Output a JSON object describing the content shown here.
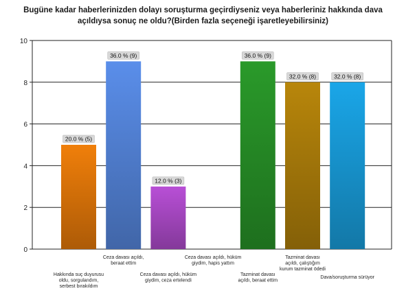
{
  "chart_data": {
    "type": "bar",
    "title": "Bugüne kadar haberlerinizden dolayı soruşturma geçirdiyseniz veya haberleriniz hakkında dava açıldıysa sonuç ne oldu?(Birden fazla seçeneği işaretleyebilirsiniz)",
    "title_lines": [
      "Bugüne kadar haberlerinizden dolayı soruşturma geçirdiyseniz veya haberleriniz hakkında dava",
      "açıldıysa sonuç ne oldu?(Birden fazla seçeneği işaretleyebilirsiniz)"
    ],
    "ylim": [
      0,
      10
    ],
    "yticks": [
      "0",
      "2",
      "4",
      "6",
      "8",
      "10"
    ],
    "grid": true,
    "categories": [
      {
        "lines": [
          "Hakkında suç duyurusu",
          "oldu, sorgulandım,",
          "serbest bırakıldım"
        ],
        "value": 5,
        "label": "20.0 % (5)",
        "color": "#f07f0a"
      },
      {
        "lines": [
          "Ceza davası açıldı,",
          "beraat ettim"
        ],
        "value": 9,
        "label": "36.0 % (9)",
        "color": "#5a8eea"
      },
      {
        "lines": [
          "Ceza davası açıldı, hüküm",
          "giydim, ceza ertelendi"
        ],
        "value": 3,
        "label": "12.0 % (3)",
        "color": "#b84fd6"
      },
      {
        "lines": [
          "Ceza davası açıldı, hüküm",
          "giydim, hapis yattım"
        ],
        "value": 0,
        "label": "",
        "color": "#888888"
      },
      {
        "lines": [
          "Tazminat davası",
          "açıldı, beraat ettim"
        ],
        "value": 9,
        "label": "36.0 % (9)",
        "color": "#2a9a2a"
      },
      {
        "lines": [
          "Tazminat davası",
          "açıldı, çalıştığım",
          "kurum tazminat ödedi"
        ],
        "value": 8,
        "label": "32.0 % (8)",
        "color": "#b8860b"
      },
      {
        "lines": [
          "Dava/soruşturma sürüyor"
        ],
        "value": 8,
        "label": "32.0 % (8)",
        "color": "#1aa6e8"
      }
    ]
  }
}
